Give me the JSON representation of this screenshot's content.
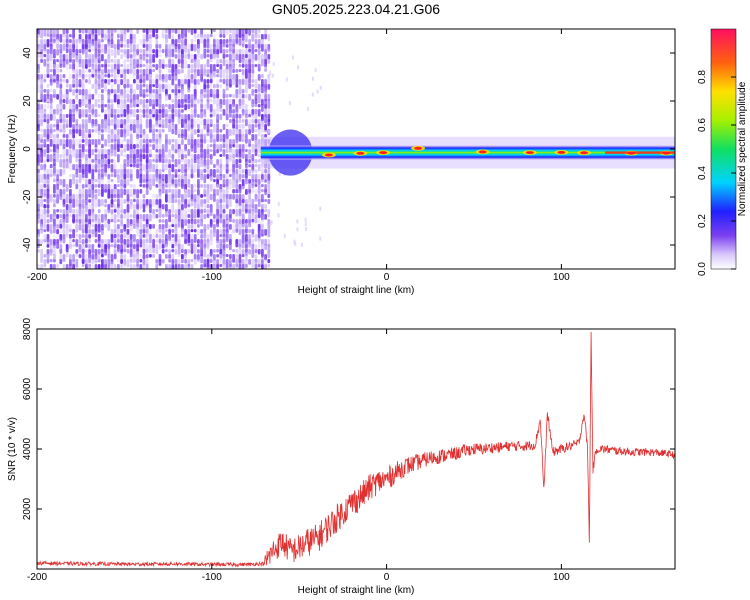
{
  "title": "GN05.2025.223.04.21.G06",
  "colors": {
    "snr_line": "#e03030",
    "noise_purple": "#7b3ff0",
    "frame": "#000000"
  },
  "chart_data": [
    {
      "type": "heatmap",
      "xlabel": "Height of straight line (km)",
      "ylabel": "Frequency (Hz)",
      "xlim": [
        -200,
        165
      ],
      "ylim": [
        -50,
        50
      ],
      "x_ticks": [
        -200,
        -100,
        0,
        100
      ],
      "x_tick_labels": [
        "-200",
        "-100",
        "0",
        "100"
      ],
      "y_ticks": [
        40,
        20,
        0,
        -20,
        -40
      ],
      "y_tick_labels": [
        "40",
        "20",
        "0",
        "-20",
        "-40"
      ],
      "noise_region": {
        "x": [
          -200,
          -68
        ],
        "y": [
          -50,
          50
        ]
      },
      "signal_band": {
        "x": [
          -72,
          165
        ],
        "center_hz": -1.5,
        "half_width_hz": 3
      },
      "peaks": [
        {
          "x": -33,
          "y": -2.5
        },
        {
          "x": -15,
          "y": -1.8
        },
        {
          "x": -2,
          "y": -1.5
        },
        {
          "x": 18,
          "y": 0.3
        },
        {
          "x": 55,
          "y": -1.2
        },
        {
          "x": 82,
          "y": -1.5
        },
        {
          "x": 100,
          "y": -1.4
        },
        {
          "x": 113,
          "y": -1.6
        },
        {
          "x": 140,
          "y": -1.7
        },
        {
          "x": 160,
          "y": -1.7
        }
      ],
      "colorbar": {
        "label": "Normalized spectral amplitude",
        "range": [
          0,
          1
        ],
        "ticks": [
          0.0,
          0.2,
          0.4,
          0.6,
          0.8
        ],
        "tick_labels": [
          "0.0",
          "0.2",
          "0.4",
          "0.6",
          "0.8"
        ]
      }
    },
    {
      "type": "line",
      "xlabel": "Height of straight line (km)",
      "ylabel": "SNR (10 * v/v)",
      "xlim": [
        -200,
        165
      ],
      "ylim": [
        0,
        8000
      ],
      "x_ticks": [
        -200,
        -100,
        0,
        100
      ],
      "x_tick_labels": [
        "-200",
        "-100",
        "0",
        "100"
      ],
      "y_ticks": [
        2000,
        4000,
        6000,
        8000
      ],
      "y_tick_labels": [
        "2000",
        "4000",
        "6000",
        "8000"
      ],
      "x": [
        -200,
        -180,
        -160,
        -140,
        -120,
        -100,
        -80,
        -70,
        -65,
        -60,
        -55,
        -50,
        -45,
        -40,
        -35,
        -30,
        -25,
        -20,
        -15,
        -10,
        -5,
        0,
        5,
        10,
        15,
        20,
        25,
        30,
        35,
        40,
        45,
        50,
        55,
        60,
        65,
        70,
        75,
        80,
        85,
        88,
        90,
        92,
        95,
        100,
        105,
        110,
        113,
        115,
        116,
        117,
        118,
        120,
        125,
        130,
        140,
        150,
        160,
        165
      ],
      "y": [
        200,
        180,
        170,
        160,
        170,
        150,
        150,
        180,
        600,
        900,
        600,
        700,
        900,
        1000,
        1300,
        1600,
        1900,
        2200,
        2400,
        2700,
        2900,
        3000,
        3200,
        3400,
        3500,
        3600,
        3700,
        3750,
        3800,
        3850,
        3950,
        4000,
        4000,
        4050,
        4050,
        4100,
        4100,
        4100,
        4150,
        5000,
        2600,
        5200,
        3900,
        4000,
        4100,
        4200,
        5200,
        4000,
        800,
        8000,
        3300,
        4000,
        4000,
        3950,
        3900,
        3900,
        3850,
        3800
      ],
      "x_noise_amp": [
        [
          -200,
          60
        ],
        [
          -70,
          60
        ],
        [
          -69,
          400
        ],
        [
          -40,
          500
        ],
        [
          -10,
          450
        ],
        [
          20,
          260
        ],
        [
          60,
          180
        ],
        [
          165,
          120
        ]
      ]
    }
  ]
}
